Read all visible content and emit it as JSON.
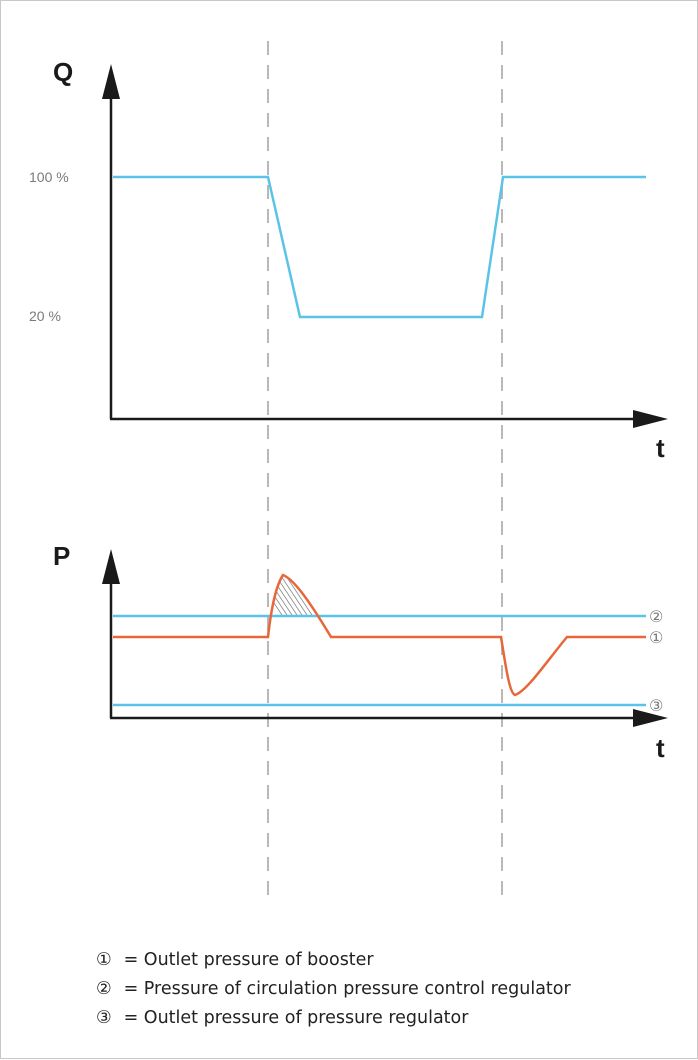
{
  "colors": {
    "flow_line": "#5cc3e8",
    "booster_line": "#e8673a",
    "axis": "#1a1a1a",
    "dashed_divider": "#b8b8b8",
    "label_gray": "#7a7a7a"
  },
  "top_chart": {
    "y_axis_label": "Q",
    "x_axis_label": "t",
    "tick_labels": [
      "100 %",
      "20 %"
    ]
  },
  "bottom_chart": {
    "y_axis_label": "P",
    "x_axis_label": "t",
    "line_markers": [
      "②",
      "①",
      "③"
    ]
  },
  "legend": [
    {
      "symbol": "①",
      "text": "= Outlet pressure of booster"
    },
    {
      "symbol": "②",
      "text": "= Pressure of circulation pressure control regulator"
    },
    {
      "symbol": "③",
      "text": "= Outlet pressure of pressure regulator"
    }
  ]
}
